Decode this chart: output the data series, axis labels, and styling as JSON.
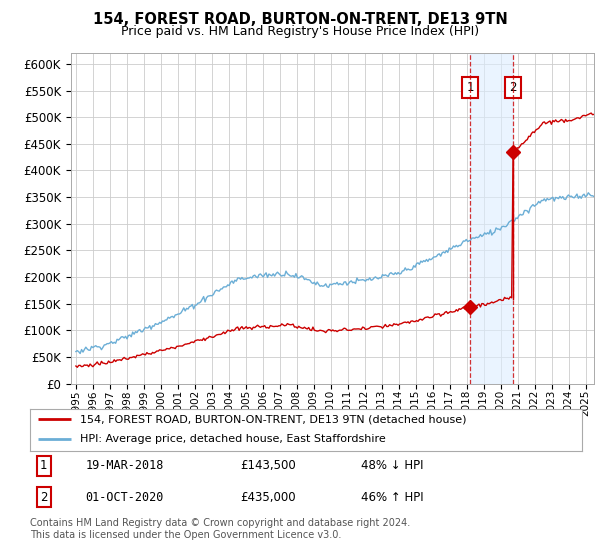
{
  "title": "154, FOREST ROAD, BURTON-ON-TRENT, DE13 9TN",
  "subtitle": "Price paid vs. HM Land Registry's House Price Index (HPI)",
  "ylabel_ticks": [
    "£0",
    "£50K",
    "£100K",
    "£150K",
    "£200K",
    "£250K",
    "£300K",
    "£350K",
    "£400K",
    "£450K",
    "£500K",
    "£550K",
    "£600K"
  ],
  "ytick_values": [
    0,
    50000,
    100000,
    150000,
    200000,
    250000,
    300000,
    350000,
    400000,
    450000,
    500000,
    550000,
    600000
  ],
  "hpi_color": "#6baed6",
  "price_color": "#cc0000",
  "sale1_year": 2018.21,
  "sale1_price": 143500,
  "sale2_year": 2020.75,
  "sale2_price": 435000,
  "legend_line1": "154, FOREST ROAD, BURTON-ON-TRENT, DE13 9TN (detached house)",
  "legend_line2": "HPI: Average price, detached house, East Staffordshire",
  "footnote": "Contains HM Land Registry data © Crown copyright and database right 2024.\nThis data is licensed under the Open Government Licence v3.0.",
  "background_color": "#ffffff",
  "grid_color": "#cccccc",
  "xmin": 1994.7,
  "xmax": 2025.5,
  "ymin": 0,
  "ymax": 600000
}
